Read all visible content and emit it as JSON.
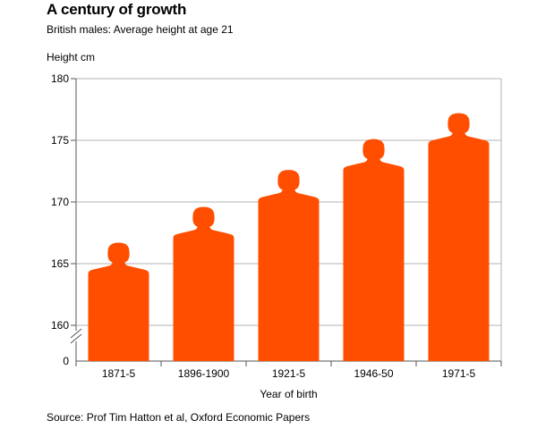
{
  "header": {
    "title": "A century of growth",
    "subtitle": "British males: Average height at age 21"
  },
  "footer": {
    "source": "Source: Prof Tim Hatton et al, Oxford Economic Papers"
  },
  "colors": {
    "bar": "#ff4e00",
    "grid": "#b3b3b3",
    "axis": "#555555"
  },
  "chart_data": {
    "type": "bar",
    "title": "A century of growth",
    "subtitle": "British males: Average height at age 21",
    "xlabel": "Year of birth",
    "ylabel": "Height cm",
    "categories": [
      "1871-5",
      "1896-1900",
      "1921-5",
      "1946-50",
      "1971-5"
    ],
    "values": [
      166.7,
      169.6,
      172.6,
      175.1,
      177.2
    ],
    "ylim": [
      160,
      180
    ],
    "yticks": [
      "180",
      "175",
      "170",
      "165",
      "160"
    ],
    "y_zero_label": "0",
    "broken_axis": true,
    "bar_shape": "human-silhouette",
    "grid": true,
    "legend": "none"
  }
}
